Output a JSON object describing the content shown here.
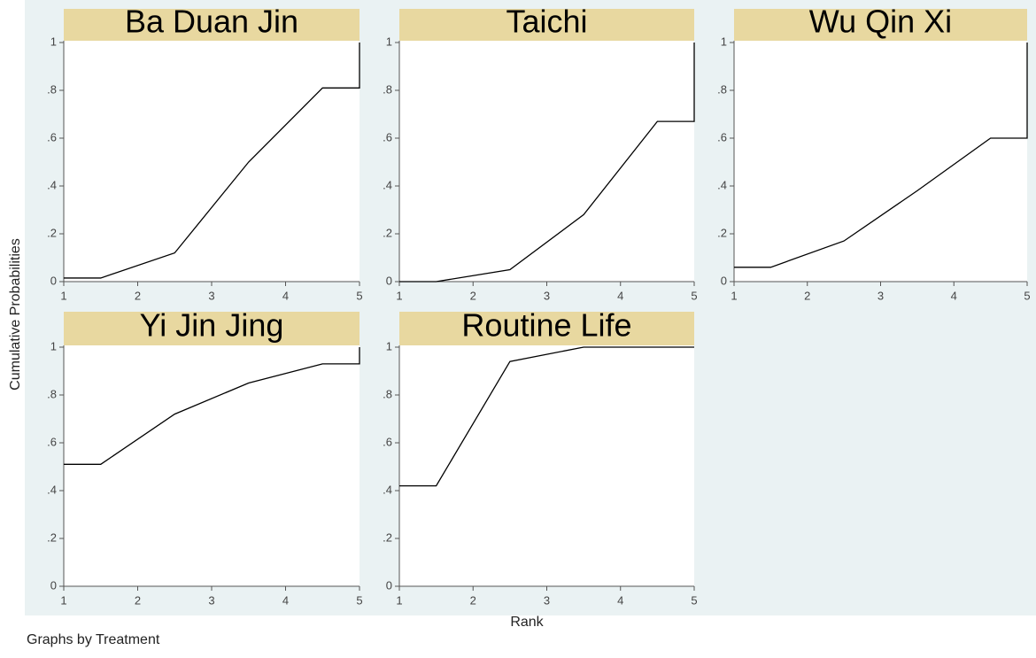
{
  "figure": {
    "ylabel": "Cumulative Probabilities",
    "xlabel": "Rank",
    "note": "Graphs by Treatment"
  },
  "chart_data": [
    {
      "type": "line",
      "title": "Ba Duan Jin",
      "x": [
        1,
        1.5,
        2.5,
        3.5,
        4.5,
        5,
        5
      ],
      "values": [
        0.015,
        0.015,
        0.12,
        0.5,
        0.81,
        0.81,
        1
      ],
      "color": "#000000",
      "xlim": [
        1,
        5
      ],
      "ylim": [
        0,
        1
      ],
      "xticks": [
        1,
        2,
        3,
        4,
        5
      ],
      "yticks": [
        0,
        {
          "value": 0.2,
          "label": ".2"
        },
        {
          "value": 0.4,
          "label": ".4"
        },
        {
          "value": 0.6,
          "label": ".6"
        },
        {
          "value": 0.8,
          "label": ".8"
        },
        1
      ]
    },
    {
      "type": "line",
      "title": "Taichi",
      "x": [
        1,
        1.5,
        2.5,
        3.5,
        4.5,
        5,
        5
      ],
      "values": [
        0,
        0,
        0.05,
        0.28,
        0.67,
        0.67,
        1
      ],
      "color": "#000000",
      "xlim": [
        1,
        5
      ],
      "ylim": [
        0,
        1
      ],
      "xticks": [
        1,
        2,
        3,
        4,
        5
      ],
      "yticks": [
        0,
        {
          "value": 0.2,
          "label": ".2"
        },
        {
          "value": 0.4,
          "label": ".4"
        },
        {
          "value": 0.6,
          "label": ".6"
        },
        {
          "value": 0.8,
          "label": ".8"
        },
        1
      ]
    },
    {
      "type": "line",
      "title": "Wu Qin Xi",
      "x": [
        1,
        1.5,
        2.5,
        3.5,
        4.5,
        5,
        5
      ],
      "values": [
        0.06,
        0.06,
        0.17,
        0.38,
        0.6,
        0.6,
        1
      ],
      "color": "#000000",
      "xlim": [
        1,
        5
      ],
      "ylim": [
        0,
        1
      ],
      "xticks": [
        1,
        2,
        3,
        4,
        5
      ],
      "yticks": [
        0,
        {
          "value": 0.2,
          "label": ".2"
        },
        {
          "value": 0.4,
          "label": ".4"
        },
        {
          "value": 0.6,
          "label": ".6"
        },
        {
          "value": 0.8,
          "label": ".8"
        },
        1
      ]
    },
    {
      "type": "line",
      "title": "Yi Jin Jing",
      "x": [
        1,
        1.5,
        2.5,
        3.5,
        4.5,
        5,
        5
      ],
      "values": [
        0.51,
        0.51,
        0.72,
        0.85,
        0.93,
        0.93,
        1
      ],
      "color": "#000000",
      "xlim": [
        1,
        5
      ],
      "ylim": [
        0,
        1
      ],
      "xticks": [
        1,
        2,
        3,
        4,
        5
      ],
      "yticks": [
        0,
        {
          "value": 0.2,
          "label": ".2"
        },
        {
          "value": 0.4,
          "label": ".4"
        },
        {
          "value": 0.6,
          "label": ".6"
        },
        {
          "value": 0.8,
          "label": ".8"
        },
        1
      ]
    },
    {
      "type": "line",
      "title": "Routine Life",
      "x": [
        1,
        1.5,
        2.5,
        3.5,
        4.5,
        5,
        5
      ],
      "values": [
        0.42,
        0.42,
        0.94,
        1,
        1,
        1,
        1
      ],
      "color": "#000000",
      "xlim": [
        1,
        5
      ],
      "ylim": [
        0,
        1
      ],
      "xticks": [
        1,
        2,
        3,
        4,
        5
      ],
      "yticks": [
        0,
        {
          "value": 0.2,
          "label": ".2"
        },
        {
          "value": 0.4,
          "label": ".4"
        },
        {
          "value": 0.6,
          "label": ".6"
        },
        {
          "value": 0.8,
          "label": ".8"
        },
        1
      ]
    }
  ]
}
